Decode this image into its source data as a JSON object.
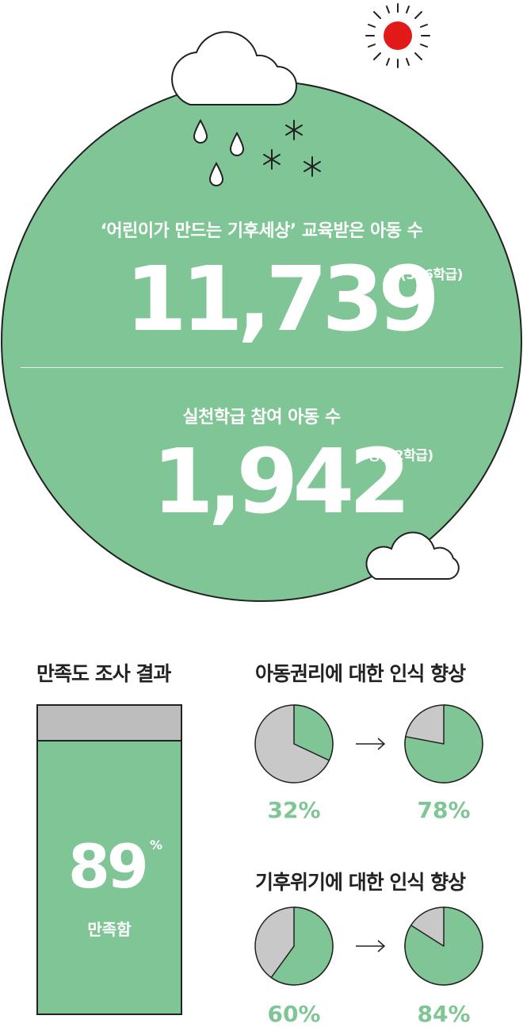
{
  "hero": {
    "label_trained": "‘어린이가 만드는 기후세상’ 교육받은 아동 수",
    "value_trained": "11,739",
    "unit_trained": "명(546학급)",
    "label_practice": "실천학급 참여 아동 수",
    "value_practice": "1,942",
    "unit_practice": "명(92학급)"
  },
  "colors": {
    "green": "#80c595",
    "gray": "#c8c8c8",
    "sun": "#e11919",
    "outline": "#222222"
  },
  "icons": [
    "sun-icon",
    "cloud-icon",
    "raindrop-icon",
    "snowflake-icon"
  ],
  "satisfaction": {
    "title": "만족도 조사 결과",
    "value": "89",
    "unit": "%",
    "label": "만족함",
    "fraction": 0.89
  },
  "rights": {
    "title": "아동권리에 대한 인식 향상",
    "arrow": "→",
    "before_label": "32%",
    "after_label": "78%"
  },
  "climate": {
    "title": "기후위기에 대한 인식 향상",
    "arrow": "→",
    "before_label": "60%",
    "after_label": "84%"
  },
  "chart_data": [
    {
      "type": "bar",
      "title": "만족도 조사 결과",
      "categories": [
        "만족함"
      ],
      "values": [
        89
      ],
      "ylim": [
        0,
        100
      ]
    },
    {
      "type": "pie",
      "title": "아동권리에 대한 인식 향상",
      "categories": [
        "before",
        "after"
      ],
      "values": [
        32,
        78
      ]
    },
    {
      "type": "pie",
      "title": "기후위기에 대한 인식 향상",
      "categories": [
        "before",
        "after"
      ],
      "values": [
        60,
        84
      ]
    }
  ]
}
